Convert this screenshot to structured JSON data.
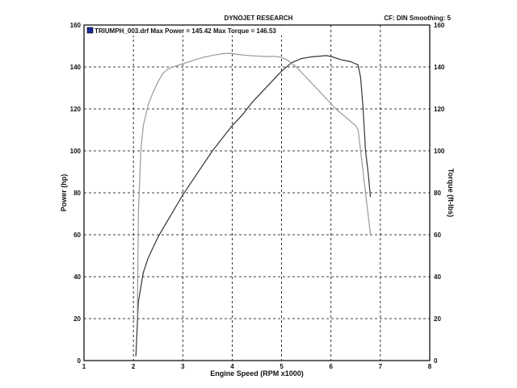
{
  "header": {
    "title": "DYNOJET RESEARCH",
    "settings": "CF: DIN  Smoothing: 5",
    "legend_text": "TRIUMPH_003.drf Max Power = 145.42    Max Torque = 146.53"
  },
  "chart_data": {
    "type": "line",
    "title": "DYNOJET RESEARCH",
    "xlabel": "Engine Speed (RPM x1000)",
    "ylabel": "Power (hp)",
    "y2label": "Torque (ft-lbs)",
    "xlim": [
      1,
      8
    ],
    "ylim": [
      0,
      160
    ],
    "y2lim": [
      0,
      160
    ],
    "xticks": [
      1,
      2,
      3,
      4,
      5,
      6,
      7,
      8
    ],
    "yticks": [
      0,
      20,
      40,
      60,
      80,
      100,
      120,
      140,
      160
    ],
    "grid": true,
    "legend_position": "top-left",
    "series": [
      {
        "name": "Power",
        "axis": "left",
        "color": "#333333",
        "x": [
          2.05,
          2.1,
          2.2,
          2.3,
          2.4,
          2.5,
          2.6,
          2.7,
          2.8,
          2.9,
          3.0,
          3.2,
          3.4,
          3.6,
          3.8,
          4.0,
          4.2,
          4.4,
          4.6,
          4.8,
          5.0,
          5.2,
          5.4,
          5.6,
          5.8,
          5.9,
          6.0,
          6.2,
          6.4,
          6.55,
          6.6,
          6.65,
          6.7,
          6.75,
          6.8
        ],
        "y": [
          2,
          28,
          42,
          49,
          54,
          59,
          63,
          67,
          71,
          75,
          79,
          86,
          93,
          100,
          106,
          112,
          117,
          123,
          128,
          133,
          138,
          142,
          144,
          144.8,
          145.2,
          145.42,
          145,
          143.5,
          142.5,
          141,
          135,
          120,
          100,
          90,
          78
        ]
      },
      {
        "name": "Torque",
        "axis": "right",
        "color": "#9a9a9a",
        "x": [
          2.08,
          2.1,
          2.15,
          2.2,
          2.3,
          2.4,
          2.5,
          2.6,
          2.7,
          2.8,
          3.0,
          3.2,
          3.4,
          3.6,
          3.8,
          3.95,
          4.1,
          4.3,
          4.5,
          4.7,
          4.9,
          5.0,
          5.1,
          5.3,
          5.5,
          5.7,
          5.9,
          6.1,
          6.3,
          6.5,
          6.55,
          6.6,
          6.7,
          6.8
        ],
        "y": [
          20,
          70,
          100,
          112,
          122,
          128,
          133,
          137,
          139,
          140,
          141.5,
          143,
          144.5,
          145.5,
          146.3,
          146.53,
          146,
          145.5,
          145.2,
          145,
          145,
          144.5,
          143.5,
          140,
          135,
          130,
          125,
          120,
          116,
          112,
          110,
          100,
          80,
          60
        ]
      }
    ]
  }
}
